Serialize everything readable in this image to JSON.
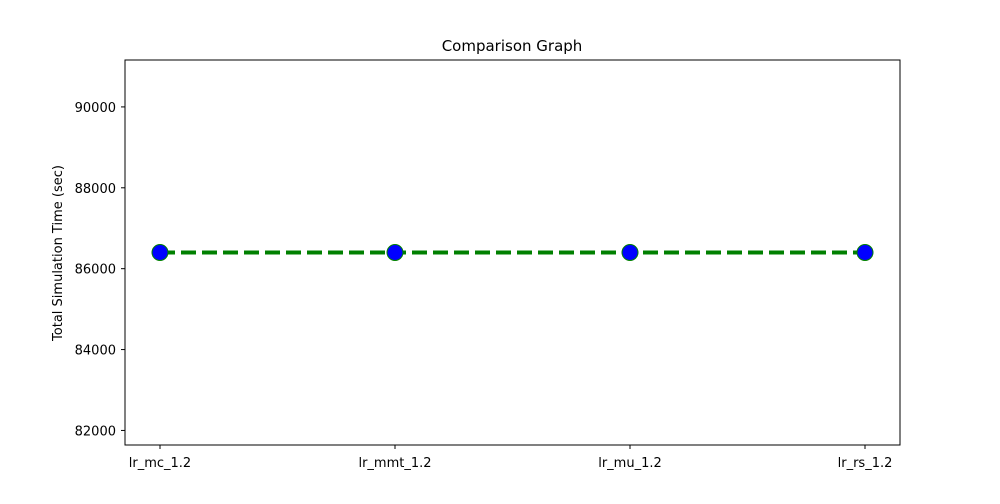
{
  "chart_data": {
    "type": "line",
    "title": "Comparison Graph",
    "xlabel": "",
    "ylabel": "Total Simulation Time (sec)",
    "categories": [
      "lr_mc_1.2",
      "lr_mmt_1.2",
      "lr_mu_1.2",
      "lr_rs_1.2"
    ],
    "series": [
      {
        "values": [
          86400,
          86400,
          86400,
          86400
        ],
        "line_color": "#008000",
        "line_style": "dashed",
        "marker": "circle",
        "marker_face_color": "#0000ff",
        "marker_edge_color": "#008000"
      }
    ],
    "ylim": [
      81640,
      91160
    ],
    "yticks": [
      82000,
      84000,
      86000,
      88000,
      90000
    ],
    "grid": false,
    "legend": "none"
  }
}
